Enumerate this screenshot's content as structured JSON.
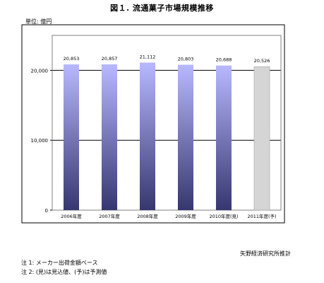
{
  "chart_data": {
    "type": "bar",
    "title": "図１. 流通菓子市場規模推移",
    "unit_label": "単位: 億円",
    "categories": [
      "2006年度",
      "2007年度",
      "2008年度",
      "2009年度",
      "2010年度(見)",
      "2011年度(予)"
    ],
    "values": [
      20853,
      20857,
      21112,
      20803,
      20688,
      20526
    ],
    "value_labels": [
      "20,853",
      "20,857",
      "21,112",
      "20,803",
      "20,688",
      "20,526"
    ],
    "bar_styles": [
      "actual",
      "actual",
      "actual",
      "actual",
      "actual",
      "forecast"
    ],
    "yticks": [
      0,
      10000,
      20000
    ],
    "ytick_labels": [
      "0",
      "10,000",
      "20,000"
    ],
    "ylim": [
      0,
      25000
    ],
    "grid": true,
    "colors": {
      "bar_top": "#b8b8ff",
      "bar_bottom": "#363670",
      "forecast_fill": "#c4c4c4",
      "forecast_border": "#a0a0a0",
      "grid": "#000000",
      "plot_border": "#808080"
    }
  },
  "notes": [
    "注 1: メーカー出荷金額ベース",
    "注 2: (見)は見込値、(予)は予測値"
  ],
  "source": "矢野経済研究所推計"
}
